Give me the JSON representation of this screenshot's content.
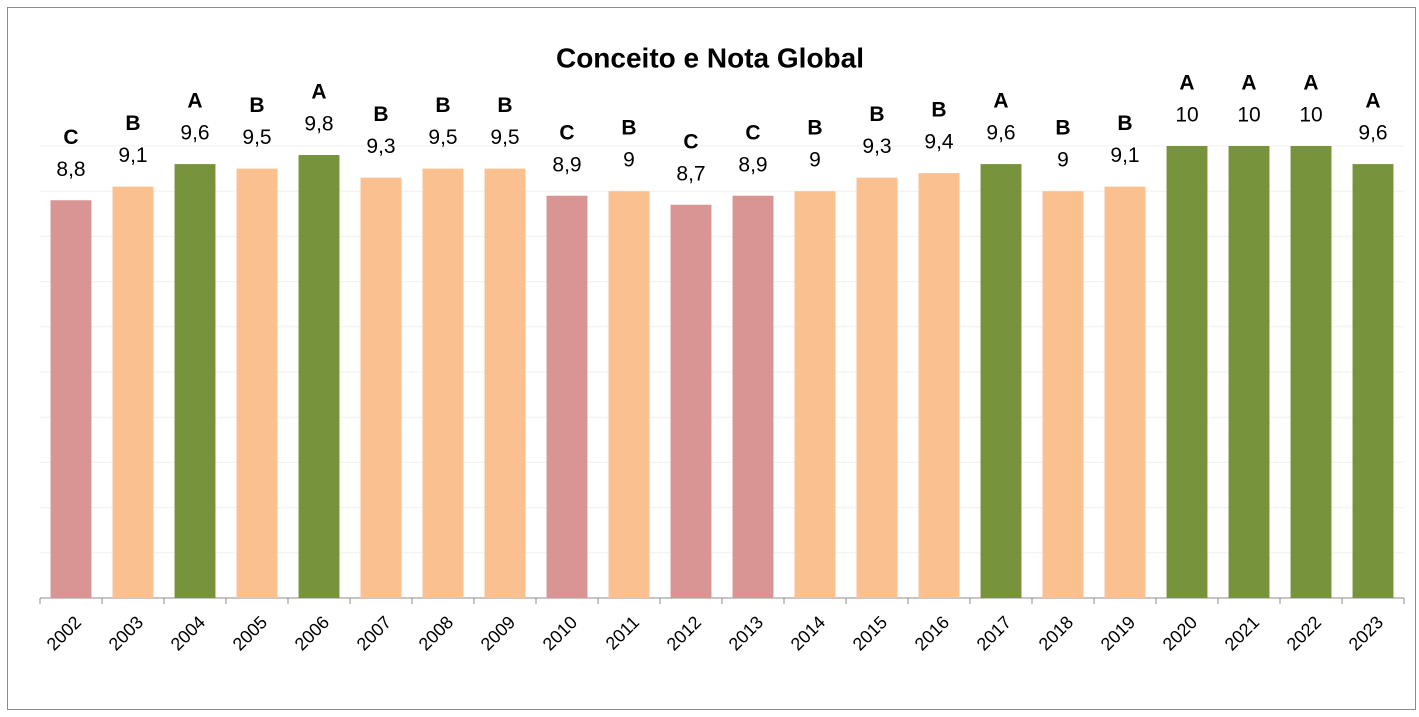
{
  "chart_data": {
    "type": "bar",
    "title": "Conceito e Nota Global",
    "categories": [
      "2002",
      "2003",
      "2004",
      "2005",
      "2006",
      "2007",
      "2008",
      "2009",
      "2010",
      "2011",
      "2012",
      "2013",
      "2014",
      "2015",
      "2016",
      "2017",
      "2018",
      "2019",
      "2020",
      "2021",
      "2022",
      "2023"
    ],
    "values": [
      8.8,
      9.1,
      9.6,
      9.5,
      9.8,
      9.3,
      9.5,
      9.5,
      8.9,
      9,
      8.7,
      8.9,
      9,
      9.3,
      9.4,
      9.6,
      9,
      9.1,
      10,
      10,
      10,
      9.6
    ],
    "value_labels": [
      "8,8",
      "9,1",
      "9,6",
      "9,5",
      "9,8",
      "9,3",
      "9,5",
      "9,5",
      "8,9",
      "9",
      "8,7",
      "8,9",
      "9",
      "9,3",
      "9,4",
      "9,6",
      "9",
      "9,1",
      "10",
      "10",
      "10",
      "9,6"
    ],
    "grades": [
      "C",
      "B",
      "A",
      "B",
      "A",
      "B",
      "B",
      "B",
      "C",
      "B",
      "C",
      "C",
      "B",
      "B",
      "B",
      "A",
      "B",
      "B",
      "A",
      "A",
      "A",
      "A"
    ],
    "grade_colors": {
      "A": "#77933c",
      "B": "#fac090",
      "C": "#d99594"
    },
    "ylim": [
      0,
      10
    ],
    "yticks": [
      0,
      1,
      2,
      3,
      4,
      5,
      6,
      7,
      8,
      9,
      10
    ],
    "grid": true
  }
}
